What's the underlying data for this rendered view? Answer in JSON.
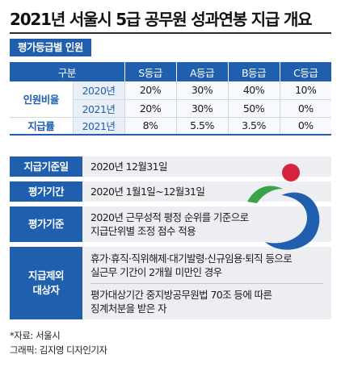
{
  "title": "2021년 서울시 5급 공무원 성과연봉 지급 개요",
  "subheading": "평가등급별 인원",
  "grade_table": {
    "headers": [
      "구분",
      "S등급",
      "A등급",
      "B등급",
      "C등급"
    ],
    "group1_label": "인원비율",
    "group2_label": "지급률",
    "rows": [
      {
        "year": "2020년",
        "values": [
          "20%",
          "30%",
          "40%",
          "10%"
        ]
      },
      {
        "year": "2021년",
        "values": [
          "20%",
          "30%",
          "50%",
          "0%"
        ]
      },
      {
        "year": "2021년",
        "values": [
          "8%",
          "5.5%",
          "3.5%",
          "0%"
        ]
      }
    ]
  },
  "info": {
    "base_date_label": "지급기준일",
    "base_date_value": "2020년 12월31일",
    "period_label": "평가기간",
    "period_value": "2020년 1월1일~12월31일",
    "criteria_label": "평가기준",
    "criteria_lines": [
      "2020년 근무성적 평정 순위를 기준으로",
      "지급단위별 조정 점수 적용"
    ],
    "excluded_label_lines": [
      "지급제외",
      "대상자"
    ],
    "excluded_item1_lines": [
      "휴가·휴직·직위해제·대기발령·신규임용·퇴직 등으로",
      "실근무 기간이 2개월 미만인 경우"
    ],
    "excluded_item2_lines": [
      "평가대상기간 중지방공무원법 70조 등에 따른",
      "징계처분을 받은 자"
    ]
  },
  "source": "*자료: 서울시",
  "credit": "그래픽: 김지영 디자인기자",
  "colors": {
    "primary_blue": "#1f5fae",
    "emblem_red": "#d6243f",
    "emblem_green": "#3aa34a",
    "emblem_blue": "#1f5fae"
  },
  "emblem_icon": "seoul-emblem-icon"
}
